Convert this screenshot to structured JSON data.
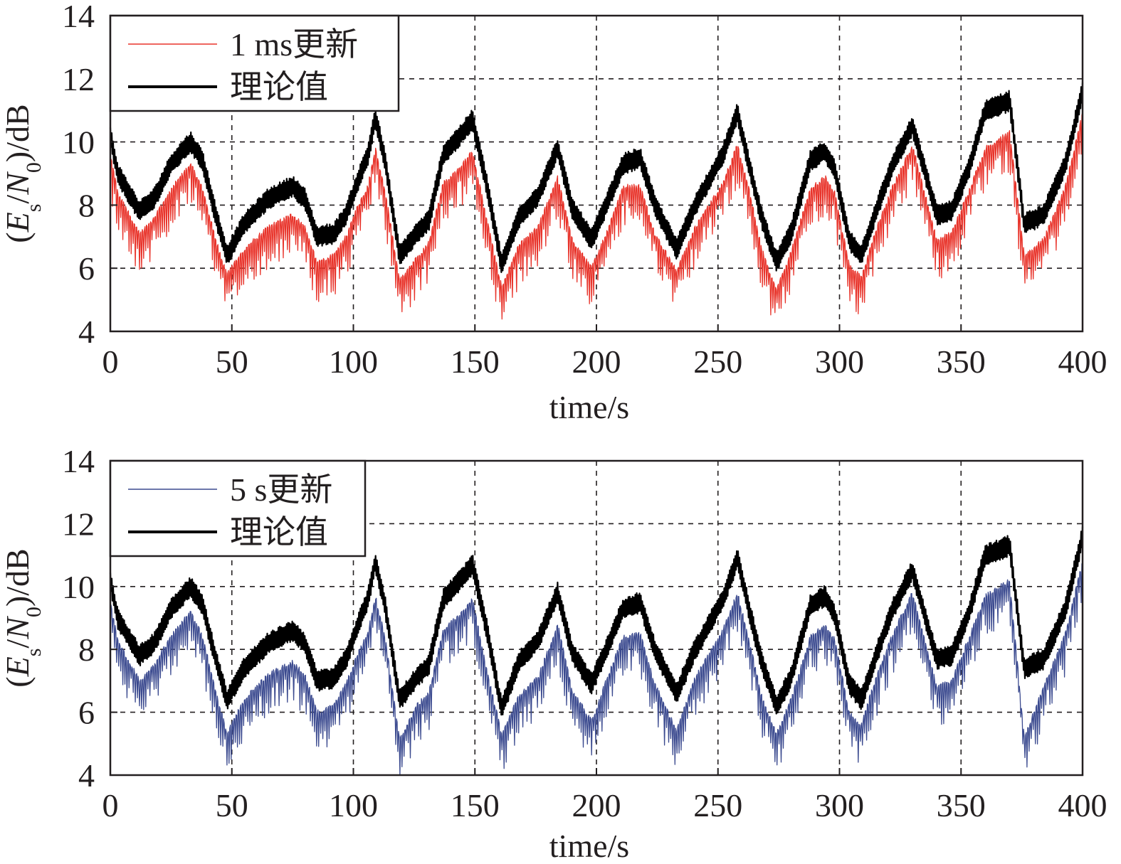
{
  "chart_data": [
    {
      "type": "line",
      "xlabel": "time/s",
      "ylabel": {
        "open": "(",
        "e": "E",
        "e_sub": "s",
        "slash": "/",
        "n": "N",
        "n_sub": "0",
        "close": ")/dB"
      },
      "xlim": [
        0,
        400
      ],
      "ylim": [
        4,
        14
      ],
      "xticks": [
        "0",
        "50",
        "100",
        "150",
        "200",
        "250",
        "300",
        "350",
        "400"
      ],
      "yticks": [
        "4",
        "6",
        "8",
        "10",
        "12",
        "14"
      ],
      "grid": true,
      "legend_position": "top-left",
      "x_knots": [
        0,
        3,
        12,
        18,
        25,
        33,
        38,
        43,
        48,
        55,
        65,
        75,
        80,
        85,
        92,
        97,
        102,
        106,
        109,
        113,
        119,
        126,
        131,
        137,
        145,
        149,
        155,
        161,
        168,
        176,
        184,
        190,
        198,
        204,
        211,
        218,
        224,
        233,
        240,
        252,
        258,
        263,
        268,
        274,
        280,
        288,
        294,
        298,
        304,
        309,
        315,
        322,
        330,
        335,
        340,
        346,
        353,
        360,
        370,
        376,
        384,
        393,
        400
      ],
      "series": [
        {
          "name": "1 ms更新",
          "color": "#e8332a",
          "values": [
            9.6,
            8.4,
            7.1,
            7.6,
            8.5,
            9.3,
            8.5,
            7.0,
            5.8,
            6.6,
            7.3,
            7.7,
            7.3,
            6.2,
            6.4,
            7.0,
            8.0,
            8.6,
            9.8,
            8.5,
            5.6,
            6.3,
            6.8,
            8.7,
            9.3,
            9.7,
            7.5,
            5.4,
            6.7,
            7.3,
            8.9,
            6.9,
            6.0,
            7.1,
            8.6,
            8.6,
            7.1,
            5.9,
            7.2,
            8.7,
            9.9,
            8.4,
            6.6,
            5.3,
            6.5,
            8.5,
            8.9,
            8.4,
            6.1,
            5.7,
            7.2,
            8.6,
            9.9,
            8.4,
            6.9,
            7.1,
            8.4,
            9.8,
            10.3,
            6.4,
            6.9,
            8.6,
            10.9
          ]
        },
        {
          "name": "理论值",
          "color": "#000000",
          "values": [
            10.2,
            9.0,
            7.8,
            8.2,
            9.3,
            10.0,
            9.4,
            7.8,
            6.4,
            7.4,
            8.2,
            8.6,
            8.2,
            7.0,
            7.1,
            7.7,
            8.8,
            9.6,
            10.8,
            9.4,
            6.4,
            7.1,
            7.5,
            9.6,
            10.3,
            10.7,
            8.6,
            6.1,
            7.6,
            8.3,
            9.8,
            7.9,
            6.9,
            8.0,
            9.3,
            9.5,
            8.0,
            6.6,
            7.9,
            9.6,
            10.9,
            9.2,
            7.6,
            6.2,
            7.1,
            9.4,
            9.7,
            9.1,
            6.9,
            6.4,
            7.8,
            9.3,
            10.5,
            9.1,
            7.7,
            7.8,
            9.1,
            11.0,
            11.3,
            7.4,
            7.7,
            9.3,
            11.6
          ]
        }
      ]
    },
    {
      "type": "line",
      "xlabel": "time/s",
      "ylabel": {
        "open": "(",
        "e": "E",
        "e_sub": "s",
        "slash": "/",
        "n": "N",
        "n_sub": "0",
        "close": ")/dB"
      },
      "xlim": [
        0,
        400
      ],
      "ylim": [
        4,
        14
      ],
      "xticks": [
        "0",
        "50",
        "100",
        "150",
        "200",
        "250",
        "300",
        "350",
        "400"
      ],
      "yticks": [
        "4",
        "6",
        "8",
        "10",
        "12",
        "14"
      ],
      "grid": true,
      "legend_position": "top-left",
      "x_knots": [
        0,
        3,
        12,
        18,
        25,
        33,
        38,
        43,
        48,
        55,
        65,
        75,
        80,
        85,
        92,
        97,
        102,
        106,
        109,
        113,
        119,
        126,
        131,
        137,
        145,
        149,
        155,
        161,
        168,
        176,
        184,
        190,
        198,
        204,
        211,
        218,
        224,
        233,
        240,
        252,
        258,
        263,
        268,
        274,
        280,
        288,
        294,
        298,
        304,
        309,
        315,
        322,
        330,
        335,
        340,
        346,
        353,
        360,
        370,
        376,
        384,
        393,
        400
      ],
      "series": [
        {
          "name": "5 s更新",
          "color": "#3b4a8f",
          "values": [
            9.5,
            8.3,
            7.0,
            7.5,
            8.4,
            9.2,
            8.4,
            6.8,
            5.3,
            6.4,
            7.2,
            7.6,
            7.2,
            6.0,
            6.2,
            6.9,
            7.9,
            8.5,
            9.7,
            8.4,
            5.1,
            6.2,
            6.6,
            8.6,
            9.2,
            9.6,
            7.3,
            5.3,
            6.5,
            7.1,
            8.8,
            6.7,
            5.7,
            7.0,
            8.4,
            8.5,
            6.9,
            5.4,
            7.0,
            8.6,
            9.8,
            8.2,
            6.5,
            5.3,
            6.4,
            8.4,
            8.8,
            8.3,
            6.0,
            5.6,
            7.1,
            8.5,
            9.8,
            8.3,
            6.8,
            7.0,
            8.3,
            9.7,
            10.2,
            5.2,
            6.8,
            8.5,
            10.8
          ]
        },
        {
          "name": "理论值",
          "color": "#000000",
          "values": [
            10.2,
            9.0,
            7.8,
            8.2,
            9.3,
            10.0,
            9.4,
            7.8,
            6.4,
            7.4,
            8.2,
            8.6,
            8.2,
            7.0,
            7.1,
            7.7,
            8.8,
            9.6,
            10.8,
            9.4,
            6.4,
            7.1,
            7.5,
            9.6,
            10.3,
            10.7,
            8.6,
            6.1,
            7.6,
            8.3,
            9.8,
            7.9,
            6.9,
            8.0,
            9.3,
            9.5,
            8.0,
            6.6,
            7.9,
            9.6,
            10.9,
            9.2,
            7.6,
            6.2,
            7.1,
            9.4,
            9.7,
            9.1,
            6.9,
            6.4,
            7.8,
            9.3,
            10.5,
            9.1,
            7.7,
            7.8,
            9.1,
            11.0,
            11.3,
            7.4,
            7.7,
            9.3,
            11.6
          ]
        }
      ]
    }
  ]
}
